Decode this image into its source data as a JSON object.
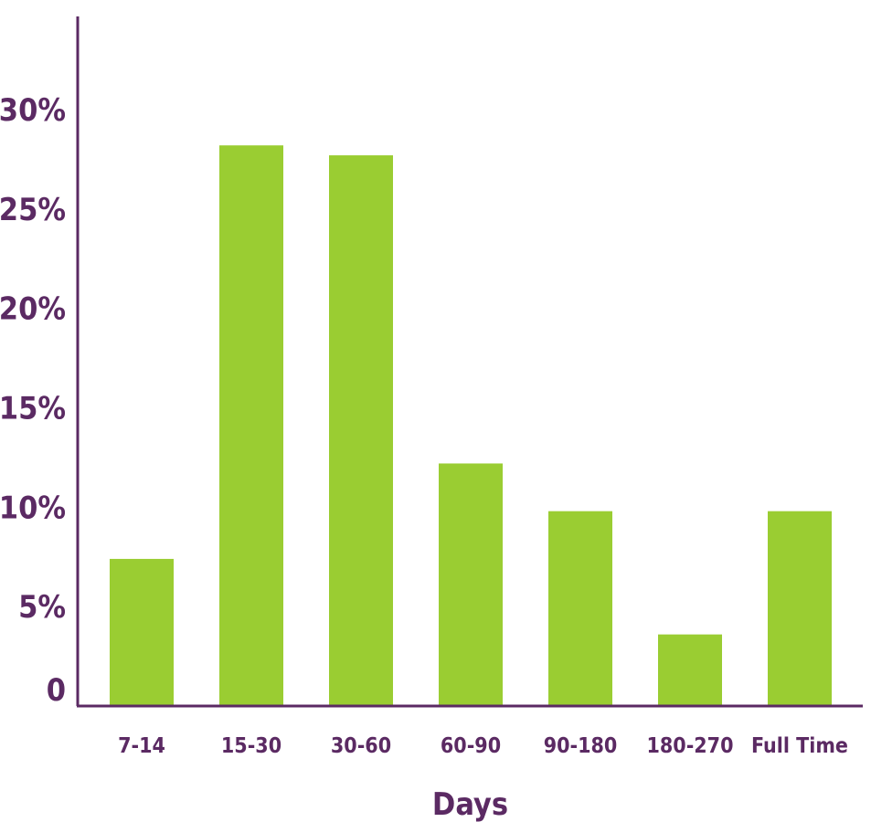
{
  "chart_data": {
    "type": "bar",
    "title": "",
    "xlabel": "Days",
    "ylabel": "",
    "categories": [
      "7-14",
      "15-30",
      "30-60",
      "60-90",
      "90-180",
      "180-270",
      "Full Time"
    ],
    "values": [
      7.4,
      28.2,
      27.7,
      12.2,
      9.8,
      3.6,
      9.8
    ],
    "ylim": [
      0,
      35
    ],
    "yticks": [
      0,
      5,
      10,
      15,
      20,
      25,
      30
    ],
    "ytick_labels": [
      "0",
      "5%",
      "10%",
      "15%",
      "20%",
      "25%",
      "30%"
    ],
    "grid": false,
    "legend": "none"
  },
  "colors": {
    "bar": "#9acd32",
    "axis": "#5b2a63",
    "text": "#5b2a63"
  }
}
